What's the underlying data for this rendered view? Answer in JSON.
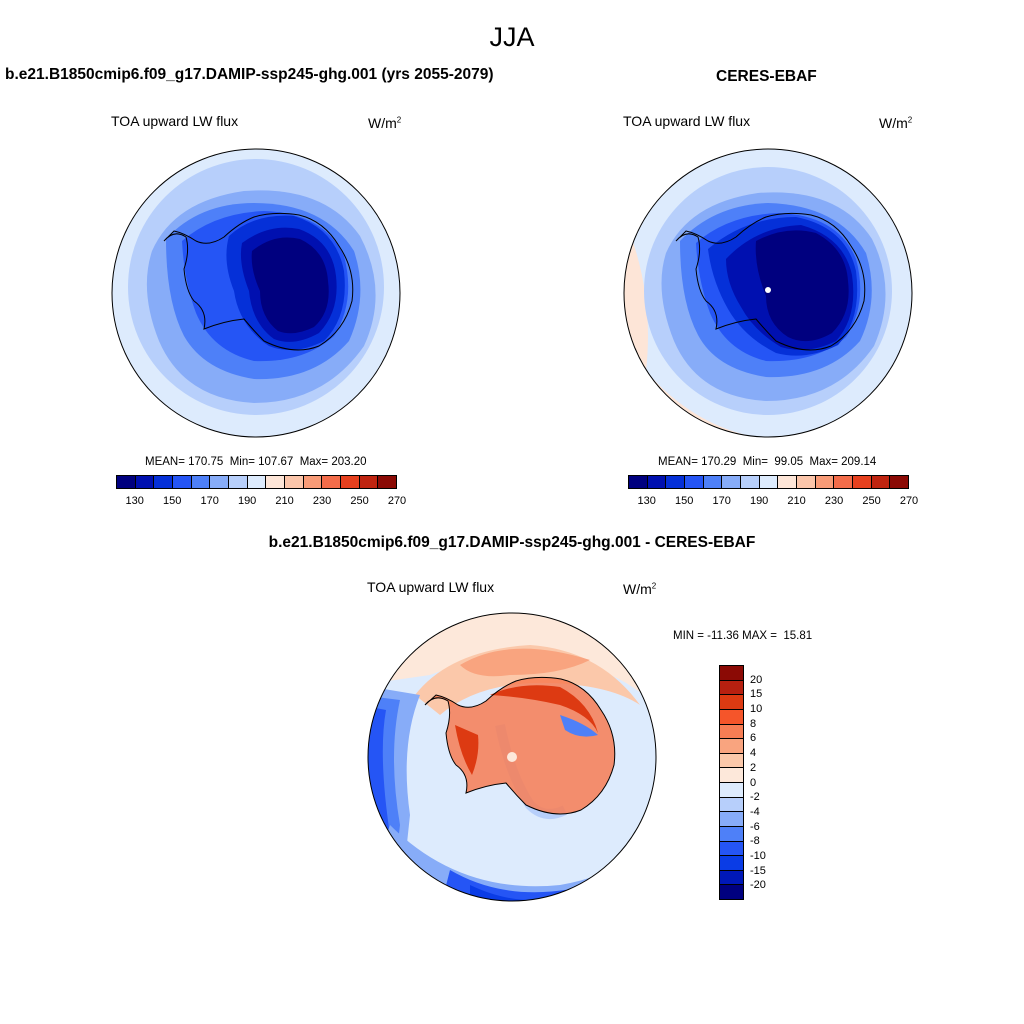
{
  "season": "JJA",
  "panels": [
    {
      "title": "b.e21.B1850cmip6.f09_g17.DAMIP-ssp245-ghg.001 (yrs 2055-2079)",
      "variable": "TOA upward LW flux",
      "units": "W/m",
      "units_sup": "2",
      "stats": "MEAN= 170.75  Min= 107.67  Max= 203.20"
    },
    {
      "title": "CERES-EBAF",
      "variable": "TOA upward LW flux",
      "units": "W/m",
      "units_sup": "2",
      "stats": "MEAN= 170.29  Min=  99.05  Max= 209.14"
    }
  ],
  "difference": {
    "title": "b.e21.B1850cmip6.f09_g17.DAMIP-ssp245-ghg.001 - CERES-EBAF",
    "variable": "TOA upward LW flux",
    "units": "W/m",
    "units_sup": "2",
    "stats": "MIN = -11.36 MAX =  15.81"
  },
  "colorbar_abs": {
    "colors": [
      "#00007f",
      "#0010b0",
      "#0530d8",
      "#2555f5",
      "#4e80f8",
      "#87acf8",
      "#b7cffb",
      "#ddebfd",
      "#fde5d7",
      "#fbc5aa",
      "#f89b77",
      "#f36c4a",
      "#e6401e",
      "#bf2410",
      "#8b0a05"
    ],
    "tick_labels": [
      "130",
      "150",
      "170",
      "190",
      "210",
      "230",
      "250",
      "270"
    ]
  },
  "colorbar_diff": {
    "colors_top_to_bottom": [
      "#8b0a05",
      "#b72010",
      "#dd3a12",
      "#f5552a",
      "#f77d54",
      "#f9a47f",
      "#fbc8aa",
      "#fde8da",
      "#ddebfd",
      "#b7cffb",
      "#87acf8",
      "#4e80f8",
      "#2555f5",
      "#0a3ce6",
      "#0018b8",
      "#00007f"
    ],
    "tick_labels_top_to_bottom": [
      "20",
      "15",
      "10",
      "8",
      "6",
      "4",
      "2",
      "0",
      "-2",
      "-4",
      "-6",
      "-8",
      "-10",
      "-15",
      "-20"
    ]
  }
}
